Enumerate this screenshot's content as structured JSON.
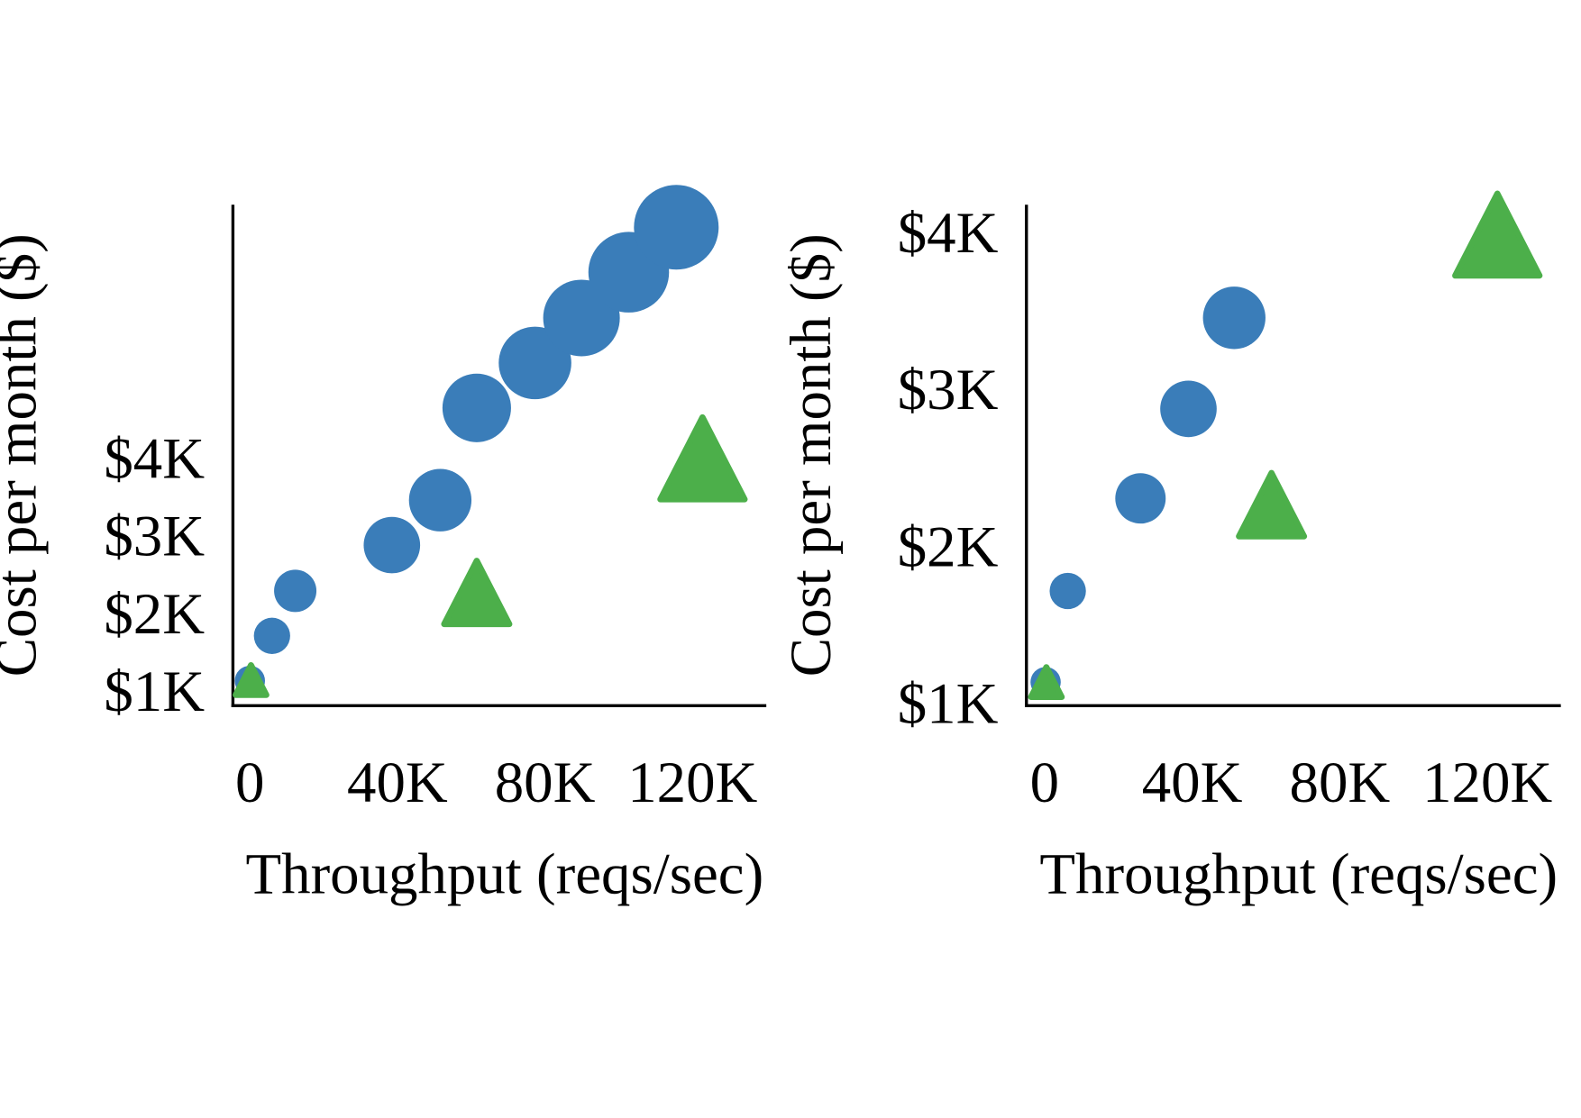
{
  "chart_data": [
    {
      "type": "scatter",
      "x_label": "Throughput (reqs/sec)",
      "y_label": "Cost per month ($)",
      "xlim": [
        -4.6,
        140
      ],
      "ylim": [
        0.84,
        7.3
      ],
      "xticks": [
        0,
        {
          "value": 40,
          "label": "40K"
        },
        {
          "value": 80,
          "label": "80K"
        },
        {
          "value": 120,
          "label": "120K"
        }
      ],
      "yticks": [
        {
          "value": 1,
          "label": "$1K"
        },
        {
          "value": 2,
          "label": "$2K"
        },
        {
          "value": 3,
          "label": "$3K"
        },
        {
          "value": 4,
          "label": "$4K"
        }
      ],
      "series": [
        {
          "color": "#3a7db9",
          "marker": "circle",
          "x": [
            0,
            6,
            12.3,
            38.5,
            51.6,
            61.5,
            77.3,
            89.9,
            102.7,
            115.6
          ],
          "values": [
            1.16,
            1.74,
            2.32,
            2.91,
            3.49,
            4.68,
            5.26,
            5.84,
            6.43,
            7.01
          ],
          "sizes": [
            15,
            18,
            21,
            28,
            31,
            34,
            36,
            38,
            40,
            42
          ]
        },
        {
          "color": "#4caf4a",
          "marker": "triangle",
          "x": [
            0.3,
            61.5,
            122.7
          ],
          "values": [
            1.17,
            2.3,
            4.03
          ],
          "sizes": [
            16,
            34,
            44
          ]
        }
      ]
    },
    {
      "type": "scatter",
      "x_label": "Throughput (reqs/sec)",
      "y_label": "Cost per month ($)",
      "xlim": [
        -4.9,
        139.9
      ],
      "ylim": [
        1,
        4.19
      ],
      "xticks": [
        0,
        {
          "value": 40,
          "label": "40K"
        },
        {
          "value": 80,
          "label": "80K"
        },
        {
          "value": 120,
          "label": "120K"
        }
      ],
      "yticks": [
        {
          "value": 1,
          "label": "$1K"
        },
        {
          "value": 2,
          "label": "$2K"
        },
        {
          "value": 3,
          "label": "$3K"
        },
        {
          "value": 4,
          "label": "$4K"
        }
      ],
      "series": [
        {
          "color": "#3a7db9",
          "marker": "circle",
          "x": [
            0.3,
            6.3,
            26,
            39,
            51.4
          ],
          "values": [
            1.15,
            1.73,
            2.32,
            2.89,
            3.47
          ],
          "sizes": [
            15,
            18,
            25,
            28,
            31
          ]
        },
        {
          "color": "#4caf4a",
          "marker": "triangle",
          "x": [
            0.5,
            61.5,
            122.7
          ],
          "values": [
            1.15,
            2.28,
            4.0
          ],
          "sizes": [
            16,
            34,
            44
          ]
        }
      ]
    }
  ]
}
